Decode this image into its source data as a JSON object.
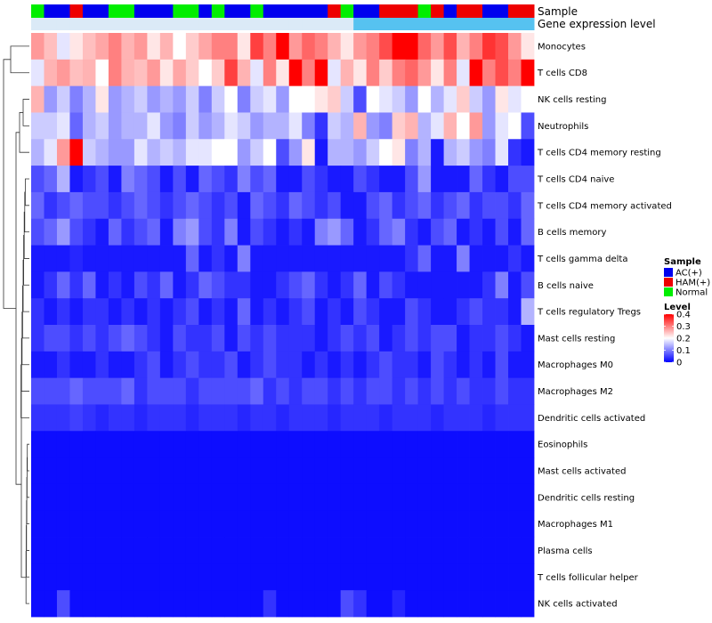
{
  "chart_data": {
    "type": "heatmap",
    "title": "",
    "annotation_labels": {
      "sample": "Sample",
      "group": "Gene expression level"
    },
    "rows": [
      "Monocytes",
      "T cells CD8",
      "NK cells resting",
      "Neutrophils",
      "T cells CD4 memory resting",
      "T cells CD4 naive",
      "T cells CD4 memory activated",
      "B cells memory",
      "T cells gamma delta",
      "B cells naive",
      "T cells regulatory  Tregs",
      "Mast cells resting",
      "Macrophages M0",
      "Macrophages M2",
      "Dendritic cells activated",
      "Eosinophils",
      "Mast cells activated",
      "Dendritic cells resting",
      "Macrophages M1",
      "Plasma cells",
      "T cells follicular helper",
      "NK cells activated"
    ],
    "sample_groups": [
      "Normal",
      "AC(+)",
      "AC(+)",
      "HAM(+)",
      "AC(+)",
      "AC(+)",
      "Normal",
      "Normal",
      "AC(+)",
      "AC(+)",
      "AC(+)",
      "Normal",
      "Normal",
      "AC(+)",
      "Normal",
      "AC(+)",
      "AC(+)",
      "Normal",
      "AC(+)",
      "AC(+)",
      "AC(+)",
      "AC(+)",
      "AC(+)",
      "HAM(+)",
      "Normal",
      "AC(+)",
      "AC(+)",
      "HAM(+)",
      "HAM(+)",
      "HAM(+)",
      "Normal",
      "HAM(+)",
      "AC(+)",
      "HAM(+)",
      "HAM(+)",
      "AC(+)",
      "AC(+)",
      "HAM(+)",
      "HAM(+)"
    ],
    "expression_group": [
      "low",
      "low",
      "low",
      "low",
      "low",
      "low",
      "low",
      "low",
      "low",
      "low",
      "low",
      "low",
      "low",
      "low",
      "low",
      "low",
      "low",
      "low",
      "low",
      "low",
      "low",
      "low",
      "low",
      "low",
      "low",
      "high",
      "high",
      "high",
      "high",
      "high",
      "high",
      "high",
      "high",
      "high",
      "high",
      "high",
      "high",
      "high",
      "high"
    ],
    "values": [
      [
        0.28,
        0.25,
        0.18,
        0.22,
        0.25,
        0.27,
        0.3,
        0.26,
        0.28,
        0.22,
        0.26,
        0.2,
        0.24,
        0.27,
        0.3,
        0.3,
        0.22,
        0.35,
        0.3,
        0.4,
        0.28,
        0.32,
        0.3,
        0.26,
        0.22,
        0.28,
        0.3,
        0.34,
        0.4,
        0.4,
        0.32,
        0.28,
        0.34,
        0.26,
        0.3,
        0.36,
        0.34,
        0.28,
        0.22
      ],
      [
        0.18,
        0.26,
        0.28,
        0.25,
        0.26,
        0.2,
        0.3,
        0.26,
        0.25,
        0.28,
        0.22,
        0.27,
        0.24,
        0.2,
        0.24,
        0.35,
        0.26,
        0.18,
        0.3,
        0.22,
        0.4,
        0.3,
        0.4,
        0.18,
        0.26,
        0.22,
        0.3,
        0.24,
        0.3,
        0.32,
        0.28,
        0.22,
        0.3,
        0.18,
        0.4,
        0.3,
        0.34,
        0.3,
        0.4
      ],
      [
        0.26,
        0.12,
        0.16,
        0.1,
        0.14,
        0.22,
        0.12,
        0.14,
        0.16,
        0.12,
        0.14,
        0.12,
        0.16,
        0.1,
        0.16,
        0.2,
        0.1,
        0.16,
        0.18,
        0.12,
        0.2,
        0.2,
        0.22,
        0.24,
        0.16,
        0.06,
        0.2,
        0.18,
        0.16,
        0.12,
        0.2,
        0.14,
        0.18,
        0.24,
        0.16,
        0.12,
        0.22,
        0.18,
        0.2
      ],
      [
        0.16,
        0.16,
        0.18,
        0.08,
        0.14,
        0.16,
        0.12,
        0.14,
        0.14,
        0.18,
        0.12,
        0.1,
        0.16,
        0.12,
        0.14,
        0.18,
        0.16,
        0.12,
        0.14,
        0.14,
        0.18,
        0.1,
        0.04,
        0.16,
        0.14,
        0.26,
        0.12,
        0.1,
        0.24,
        0.26,
        0.14,
        0.18,
        0.26,
        0.2,
        0.28,
        0.12,
        0.18,
        0.2,
        0.06
      ],
      [
        0.14,
        0.18,
        0.28,
        0.4,
        0.16,
        0.14,
        0.12,
        0.12,
        0.18,
        0.14,
        0.16,
        0.14,
        0.18,
        0.18,
        0.2,
        0.2,
        0.12,
        0.16,
        0.2,
        0.06,
        0.12,
        0.22,
        0.02,
        0.14,
        0.14,
        0.12,
        0.16,
        0.2,
        0.22,
        0.1,
        0.14,
        0.02,
        0.14,
        0.16,
        0.12,
        0.1,
        0.18,
        0.04,
        0.02
      ],
      [
        0.06,
        0.08,
        0.14,
        0.02,
        0.04,
        0.06,
        0.02,
        0.1,
        0.08,
        0.06,
        0.02,
        0.06,
        0.02,
        0.08,
        0.06,
        0.04,
        0.1,
        0.06,
        0.08,
        0.02,
        0.02,
        0.06,
        0.04,
        0.02,
        0.02,
        0.06,
        0.04,
        0.02,
        0.02,
        0.06,
        0.12,
        0.02,
        0.02,
        0.02,
        0.08,
        0.04,
        0.02,
        0.06,
        0.06
      ],
      [
        0.08,
        0.04,
        0.06,
        0.08,
        0.06,
        0.06,
        0.04,
        0.06,
        0.08,
        0.06,
        0.04,
        0.06,
        0.08,
        0.06,
        0.04,
        0.06,
        0.02,
        0.08,
        0.06,
        0.04,
        0.08,
        0.06,
        0.04,
        0.06,
        0.02,
        0.02,
        0.06,
        0.08,
        0.04,
        0.06,
        0.08,
        0.04,
        0.06,
        0.08,
        0.04,
        0.06,
        0.06,
        0.04,
        0.08
      ],
      [
        0.06,
        0.08,
        0.12,
        0.06,
        0.04,
        0.02,
        0.08,
        0.04,
        0.06,
        0.08,
        0.02,
        0.1,
        0.12,
        0.06,
        0.04,
        0.1,
        0.02,
        0.06,
        0.04,
        0.02,
        0.04,
        0.02,
        0.1,
        0.12,
        0.08,
        0.02,
        0.04,
        0.08,
        0.1,
        0.04,
        0.02,
        0.06,
        0.08,
        0.02,
        0.04,
        0.02,
        0.06,
        0.02,
        0.08
      ],
      [
        0.02,
        0.02,
        0.02,
        0.03,
        0.02,
        0.02,
        0.02,
        0.02,
        0.02,
        0.02,
        0.02,
        0.02,
        0.08,
        0.02,
        0.04,
        0.02,
        0.1,
        0.02,
        0.02,
        0.02,
        0.02,
        0.02,
        0.02,
        0.02,
        0.02,
        0.02,
        0.02,
        0.02,
        0.02,
        0.04,
        0.08,
        0.02,
        0.02,
        0.1,
        0.02,
        0.02,
        0.02,
        0.04,
        0.02
      ],
      [
        0.02,
        0.04,
        0.08,
        0.04,
        0.08,
        0.02,
        0.04,
        0.02,
        0.06,
        0.04,
        0.08,
        0.02,
        0.04,
        0.08,
        0.06,
        0.04,
        0.04,
        0.02,
        0.02,
        0.04,
        0.06,
        0.08,
        0.04,
        0.02,
        0.04,
        0.08,
        0.02,
        0.06,
        0.04,
        0.02,
        0.02,
        0.02,
        0.02,
        0.02,
        0.02,
        0.04,
        0.1,
        0.02,
        0.06
      ],
      [
        0.04,
        0.02,
        0.04,
        0.02,
        0.04,
        0.04,
        0.02,
        0.04,
        0.02,
        0.04,
        0.02,
        0.04,
        0.06,
        0.02,
        0.04,
        0.02,
        0.08,
        0.02,
        0.04,
        0.02,
        0.04,
        0.06,
        0.02,
        0.04,
        0.02,
        0.06,
        0.04,
        0.02,
        0.02,
        0.06,
        0.04,
        0.02,
        0.02,
        0.04,
        0.06,
        0.04,
        0.04,
        0.02,
        0.14
      ],
      [
        0.04,
        0.06,
        0.06,
        0.04,
        0.06,
        0.04,
        0.06,
        0.08,
        0.06,
        0.04,
        0.02,
        0.06,
        0.04,
        0.04,
        0.06,
        0.02,
        0.06,
        0.04,
        0.06,
        0.04,
        0.04,
        0.04,
        0.02,
        0.04,
        0.06,
        0.04,
        0.06,
        0.02,
        0.04,
        0.06,
        0.04,
        0.06,
        0.06,
        0.02,
        0.04,
        0.04,
        0.06,
        0.04,
        0.02
      ],
      [
        0.02,
        0.02,
        0.04,
        0.02,
        0.02,
        0.04,
        0.02,
        0.02,
        0.04,
        0.06,
        0.02,
        0.04,
        0.06,
        0.04,
        0.04,
        0.06,
        0.02,
        0.04,
        0.06,
        0.04,
        0.04,
        0.02,
        0.04,
        0.02,
        0.04,
        0.02,
        0.04,
        0.06,
        0.04,
        0.04,
        0.02,
        0.06,
        0.04,
        0.02,
        0.04,
        0.02,
        0.06,
        0.02,
        0.02
      ],
      [
        0.06,
        0.06,
        0.06,
        0.08,
        0.06,
        0.06,
        0.06,
        0.08,
        0.04,
        0.06,
        0.06,
        0.06,
        0.04,
        0.06,
        0.06,
        0.06,
        0.06,
        0.08,
        0.04,
        0.06,
        0.04,
        0.06,
        0.06,
        0.04,
        0.06,
        0.04,
        0.06,
        0.06,
        0.04,
        0.06,
        0.04,
        0.06,
        0.04,
        0.06,
        0.04,
        0.04,
        0.06,
        0.04,
        0.04
      ],
      [
        0.04,
        0.04,
        0.04,
        0.05,
        0.04,
        0.03,
        0.04,
        0.04,
        0.03,
        0.04,
        0.04,
        0.04,
        0.03,
        0.04,
        0.04,
        0.04,
        0.03,
        0.04,
        0.04,
        0.03,
        0.04,
        0.04,
        0.04,
        0.03,
        0.04,
        0.04,
        0.04,
        0.03,
        0.04,
        0.04,
        0.04,
        0.03,
        0.04,
        0.04,
        0.04,
        0.03,
        0.04,
        0.04,
        0.04
      ],
      [
        0.01,
        0.01,
        0.01,
        0.01,
        0.01,
        0.01,
        0.01,
        0.01,
        0.01,
        0.01,
        0.01,
        0.01,
        0.01,
        0.01,
        0.01,
        0.01,
        0.01,
        0.01,
        0.01,
        0.01,
        0.01,
        0.01,
        0.01,
        0.01,
        0.01,
        0.01,
        0.01,
        0.01,
        0.01,
        0.01,
        0.01,
        0.01,
        0.01,
        0.01,
        0.01,
        0.01,
        0.01,
        0.01,
        0.01
      ],
      [
        0.01,
        0.01,
        0.01,
        0.01,
        0.01,
        0.01,
        0.01,
        0.01,
        0.01,
        0.01,
        0.01,
        0.01,
        0.01,
        0.01,
        0.01,
        0.01,
        0.01,
        0.01,
        0.01,
        0.01,
        0.01,
        0.01,
        0.01,
        0.01,
        0.01,
        0.01,
        0.01,
        0.01,
        0.01,
        0.01,
        0.01,
        0.01,
        0.01,
        0.01,
        0.01,
        0.01,
        0.01,
        0.01,
        0.01
      ],
      [
        0.01,
        0.01,
        0.01,
        0.01,
        0.01,
        0.01,
        0.01,
        0.01,
        0.01,
        0.01,
        0.01,
        0.01,
        0.01,
        0.01,
        0.01,
        0.01,
        0.01,
        0.01,
        0.01,
        0.01,
        0.01,
        0.01,
        0.01,
        0.01,
        0.01,
        0.01,
        0.01,
        0.01,
        0.01,
        0.01,
        0.01,
        0.01,
        0.01,
        0.01,
        0.01,
        0.01,
        0.01,
        0.01,
        0.01
      ],
      [
        0.01,
        0.01,
        0.01,
        0.01,
        0.01,
        0.01,
        0.01,
        0.01,
        0.01,
        0.01,
        0.01,
        0.01,
        0.01,
        0.01,
        0.01,
        0.01,
        0.01,
        0.01,
        0.01,
        0.01,
        0.01,
        0.01,
        0.01,
        0.01,
        0.01,
        0.01,
        0.01,
        0.01,
        0.01,
        0.01,
        0.01,
        0.01,
        0.01,
        0.01,
        0.01,
        0.01,
        0.01,
        0.01,
        0.01
      ],
      [
        0.01,
        0.01,
        0.01,
        0.01,
        0.01,
        0.01,
        0.01,
        0.01,
        0.01,
        0.01,
        0.01,
        0.01,
        0.01,
        0.01,
        0.01,
        0.01,
        0.01,
        0.01,
        0.01,
        0.01,
        0.01,
        0.01,
        0.01,
        0.01,
        0.01,
        0.01,
        0.01,
        0.01,
        0.01,
        0.01,
        0.01,
        0.01,
        0.01,
        0.01,
        0.01,
        0.01,
        0.01,
        0.01,
        0.01
      ],
      [
        0.01,
        0.01,
        0.01,
        0.01,
        0.01,
        0.01,
        0.01,
        0.01,
        0.01,
        0.01,
        0.01,
        0.01,
        0.01,
        0.01,
        0.01,
        0.01,
        0.01,
        0.01,
        0.01,
        0.01,
        0.01,
        0.01,
        0.01,
        0.01,
        0.01,
        0.01,
        0.01,
        0.01,
        0.01,
        0.01,
        0.01,
        0.01,
        0.01,
        0.01,
        0.01,
        0.01,
        0.01,
        0.01,
        0.01
      ],
      [
        0.01,
        0.01,
        0.06,
        0.01,
        0.01,
        0.01,
        0.01,
        0.01,
        0.01,
        0.01,
        0.01,
        0.01,
        0.01,
        0.01,
        0.01,
        0.01,
        0.01,
        0.01,
        0.04,
        0.01,
        0.01,
        0.01,
        0.01,
        0.01,
        0.06,
        0.04,
        0.01,
        0.01,
        0.03,
        0.01,
        0.01,
        0.01,
        0.01,
        0.01,
        0.01,
        0.01,
        0.01,
        0.01,
        0.01
      ]
    ],
    "color_scale": {
      "min": 0,
      "max": 0.4,
      "low_color": "#0000ff",
      "mid_color": "#ffffff",
      "high_color": "#ff0000",
      "midpoint": 0.2
    },
    "group_colors": {
      "AC(+)": "#0000ee",
      "HAM(+)": "#ee0000",
      "Normal": "#00ee00"
    },
    "expression_colors": {
      "low": "#dbeaf7",
      "high": "#56c2f0"
    },
    "legend": {
      "sample_title": "Sample",
      "sample_items": [
        "AC(+)",
        "HAM(+)",
        "Normal"
      ],
      "level_title": "Level",
      "level_ticks": [
        "0.4",
        "0.3",
        "0.2",
        "0.1",
        "0"
      ],
      "level_tick_values": [
        0.4,
        0.3,
        0.2,
        0.1,
        0
      ],
      "placement": "right"
    }
  }
}
